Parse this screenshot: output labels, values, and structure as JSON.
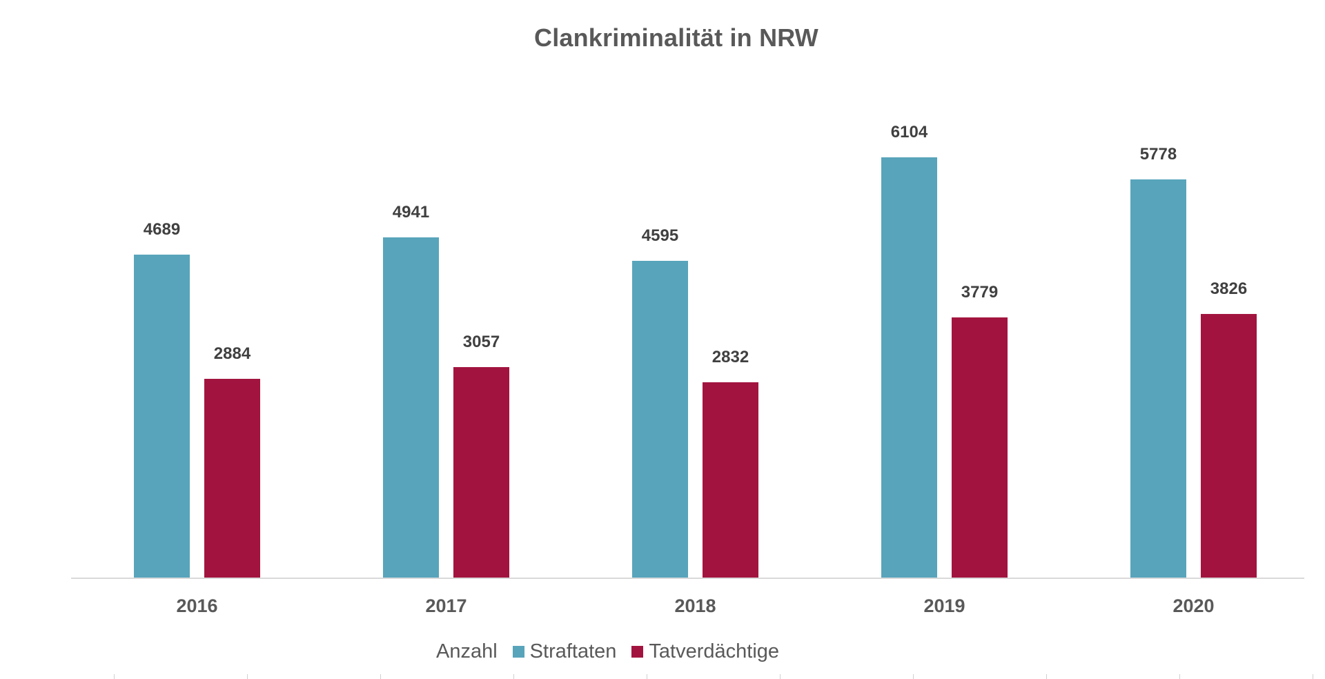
{
  "chart_data": {
    "type": "bar",
    "title": "Clankriminalität in NRW",
    "xlabel": "",
    "ylabel": "Anzahl",
    "categories": [
      "2016",
      "2017",
      "2018",
      "2019",
      "2020"
    ],
    "series": [
      {
        "name": "Straftaten",
        "color": "#58a4bb",
        "values": [
          4689,
          4941,
          4595,
          6104,
          5778
        ]
      },
      {
        "name": "Tatverdächtige",
        "color": "#a2143f",
        "values": [
          2884,
          3057,
          2832,
          3779,
          3826
        ]
      }
    ],
    "ylim": [
      0,
      6500
    ],
    "grid": false,
    "data_labels": true,
    "legend_position": "bottom"
  },
  "legend": {
    "title": "Anzahl",
    "items": [
      {
        "label": "Straftaten",
        "color": "#58a4bb"
      },
      {
        "label": "Tatverdächtige",
        "color": "#a2143f"
      }
    ]
  }
}
